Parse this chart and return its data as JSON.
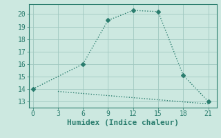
{
  "xlabel": "Humidex (Indice chaleur)",
  "line1_x": [
    0,
    6,
    9,
    12,
    15,
    18,
    21
  ],
  "line1_y": [
    14.0,
    16.0,
    19.5,
    20.3,
    20.2,
    15.1,
    13.0
  ],
  "line2_x": [
    3,
    21
  ],
  "line2_y": [
    13.8,
    12.8
  ],
  "line_color": "#2a7d6e",
  "bg_color": "#cce8e0",
  "grid_color": "#a0c8c0",
  "spine_color": "#2a7d6e",
  "xlim": [
    -0.5,
    22
  ],
  "ylim": [
    12.5,
    20.8
  ],
  "xticks": [
    0,
    3,
    6,
    9,
    12,
    15,
    18,
    21
  ],
  "yticks": [
    13,
    14,
    15,
    16,
    17,
    18,
    19,
    20
  ],
  "marker": "D",
  "marker_size": 3,
  "line_width": 1.0,
  "xlabel_fontsize": 8,
  "tick_fontsize": 7
}
